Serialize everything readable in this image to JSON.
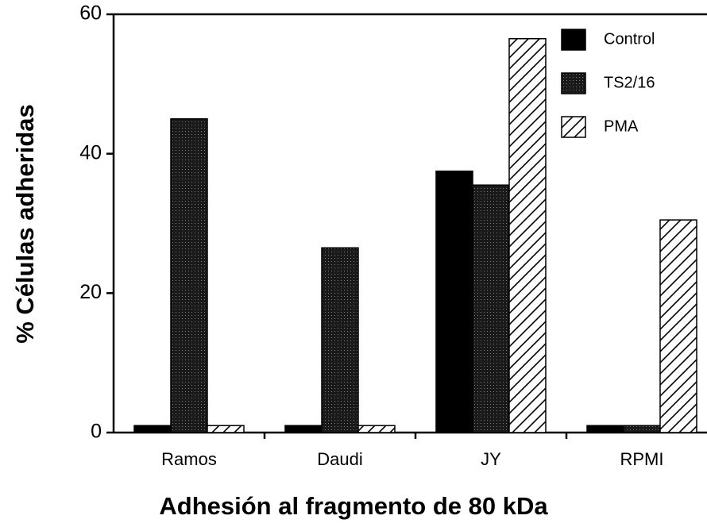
{
  "chart_data": {
    "type": "bar",
    "xlabel": "Adhesión al fragmento de 80 kDa",
    "ylabel": "% Células adheridas",
    "categories": [
      "Ramos",
      "Daudi",
      "JY",
      "RPMI"
    ],
    "series": [
      {
        "name": "Control",
        "color": "#000000",
        "pattern": "solid",
        "values": [
          1,
          1,
          37.5,
          1
        ]
      },
      {
        "name": "TS2/16",
        "color": "#1a1a1a",
        "pattern": "stipple",
        "values": [
          45,
          26.5,
          35.5,
          1
        ]
      },
      {
        "name": "PMA",
        "color": "#000000",
        "pattern": "hatch",
        "values": [
          1,
          1,
          56.5,
          30.5
        ]
      }
    ],
    "ylim": [
      0,
      60
    ],
    "yticks": [
      0,
      20,
      40,
      60
    ],
    "legend": "upper right"
  }
}
